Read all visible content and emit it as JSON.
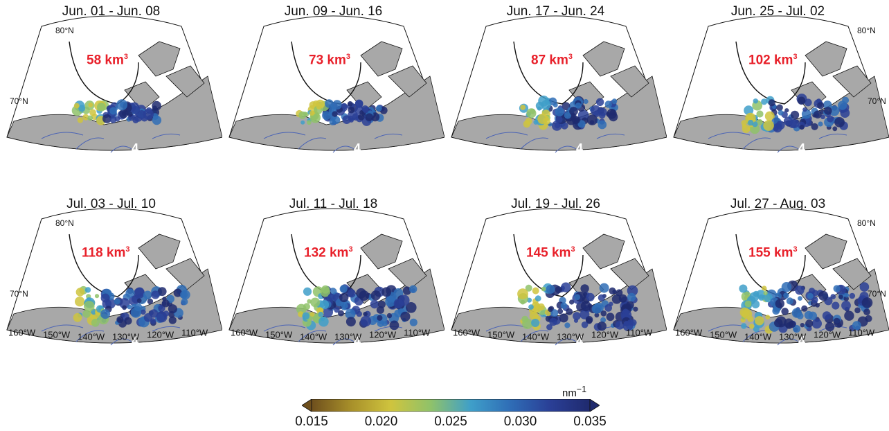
{
  "panels": [
    {
      "title": "Jun. 01 - Jun. 08",
      "volume": "58 km",
      "volume_unit_sup": "3",
      "lat_labels": [
        "80°N",
        "70°N"
      ],
      "lon_labels": [],
      "region_label": "4",
      "coverage": 0.3
    },
    {
      "title": "Jun. 09 - Jun. 16",
      "volume": "73 km",
      "volume_unit_sup": "3",
      "lat_labels": [],
      "lon_labels": [],
      "region_label": "4",
      "coverage": 0.38
    },
    {
      "title": "Jun. 17 - Jun. 24",
      "volume": "87 km",
      "volume_unit_sup": "3",
      "lat_labels": [],
      "lon_labels": [],
      "region_label": "4",
      "coverage": 0.45
    },
    {
      "title": "Jun. 25 - Jul. 02",
      "volume": "102 km",
      "volume_unit_sup": "3",
      "lat_labels": [
        "80°N",
        "70°N"
      ],
      "lon_labels": [],
      "region_label": "4",
      "coverage": 0.55
    },
    {
      "title": "Jul. 03 - Jul. 10",
      "volume": "118 km",
      "volume_unit_sup": "3",
      "lat_labels": [
        "80°N",
        "70°N"
      ],
      "lon_labels": [
        "160°W",
        "150°W",
        "140°W",
        "130°W",
        "120°W",
        "110°W"
      ],
      "region_label": "4",
      "coverage": 0.62
    },
    {
      "title": "Jul. 11 - Jul. 18",
      "volume": "132 km",
      "volume_unit_sup": "3",
      "lat_labels": [],
      "lon_labels": [
        "160°W",
        "150°W",
        "140°W",
        "130°W",
        "120°W",
        "110°W"
      ],
      "region_label": "4",
      "coverage": 0.68
    },
    {
      "title": "Jul. 19 - Jul. 26",
      "volume": "145 km",
      "volume_unit_sup": "3",
      "lat_labels": [],
      "lon_labels": [
        "160°W",
        "150°W",
        "140°W",
        "130°W",
        "120°W",
        "110°W"
      ],
      "region_label": "4",
      "coverage": 0.74
    },
    {
      "title": "Jul. 27 - Aug. 03",
      "volume": "155 km",
      "volume_unit_sup": "3",
      "lat_labels": [
        "80°N",
        "70°N"
      ],
      "lon_labels": [
        "160°W",
        "150°W",
        "140°W",
        "130°W",
        "120°W",
        "110°W"
      ],
      "region_label": "4",
      "coverage": 0.8
    }
  ],
  "colorbar": {
    "unit": "nm",
    "unit_sup": "−1",
    "ticks": [
      "0.015",
      "0.020",
      "0.025",
      "0.030",
      "0.035"
    ],
    "min": 0.015,
    "max": 0.035,
    "colors": [
      "#6e4f1d",
      "#a8902a",
      "#cfc43e",
      "#8fc26a",
      "#3f9fc9",
      "#2f6db6",
      "#2a3f96",
      "#1f2a6e"
    ]
  },
  "colors": {
    "land": "#a8a8a8",
    "ocean": "#ffffff",
    "rivers": "#4a63b5",
    "volume_label": "#e8202a",
    "coast": "#111111"
  }
}
